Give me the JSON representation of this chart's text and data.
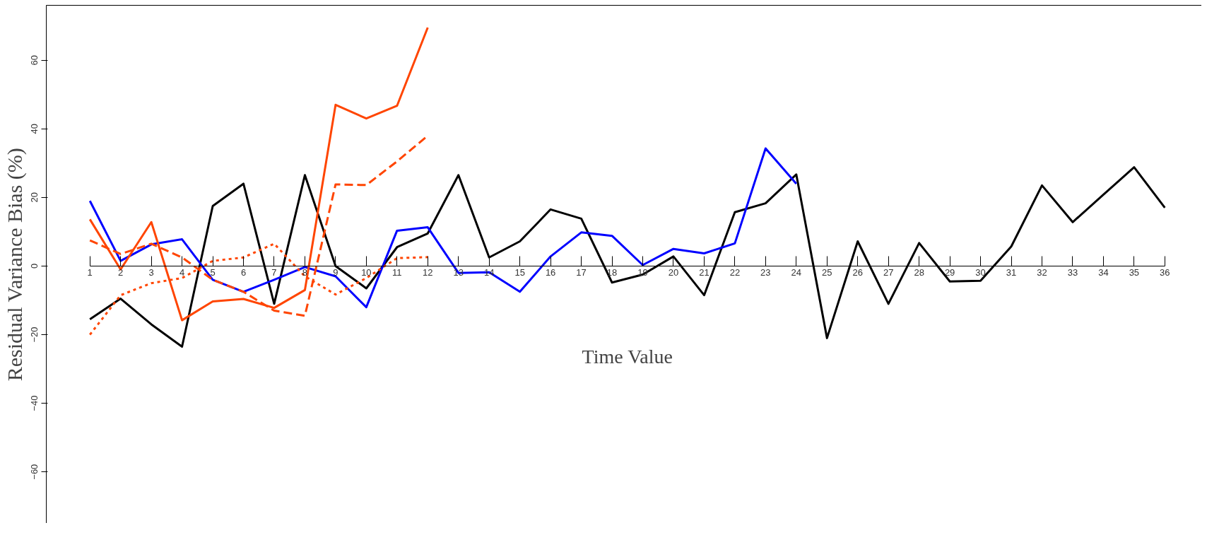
{
  "chart_data": {
    "type": "line",
    "xlabel": "Time Value",
    "ylabel": "Residual Variance Bias (%)",
    "x": [
      1,
      2,
      3,
      4,
      5,
      6,
      7,
      8,
      9,
      10,
      11,
      12,
      13,
      14,
      15,
      16,
      17,
      18,
      19,
      20,
      21,
      22,
      23,
      24,
      25,
      26,
      27,
      28,
      29,
      30,
      31,
      32,
      33,
      34,
      35,
      36
    ],
    "xlim": [
      -0.42,
      37.2
    ],
    "xticks": [
      1,
      2,
      3,
      4,
      5,
      6,
      7,
      8,
      9,
      10,
      11,
      12,
      13,
      14,
      15,
      16,
      17,
      18,
      19,
      20,
      21,
      22,
      23,
      24,
      25,
      26,
      27,
      28,
      29,
      30,
      31,
      32,
      33,
      34,
      35,
      36
    ],
    "ylim": [
      -75,
      76
    ],
    "yticks": [
      -60,
      -40,
      -20,
      0,
      20,
      40,
      60
    ],
    "grid": false,
    "marker": "none",
    "series": [
      {
        "color": "#000000",
        "line_style": "solid",
        "values": [
          -15.5,
          -9.5,
          -17,
          -23.5,
          17.5,
          24,
          -11,
          26.5,
          0,
          -6.5,
          5.5,
          9.5,
          26.5,
          2.5,
          7.2,
          16.5,
          13.8,
          -4.8,
          -2.5,
          2.8,
          -8.5,
          15.7,
          18.3,
          26.7,
          -21,
          7.2,
          -11,
          6.7,
          -4.5,
          -4.3,
          5.7,
          23.5,
          12.8,
          20.8,
          28.8,
          17
        ]
      },
      {
        "color": "#0000ff",
        "line_style": "solid",
        "values": [
          19,
          1.5,
          6.3,
          7.8,
          -4,
          -7.5,
          -4,
          -0.3,
          -3,
          -12,
          10.3,
          11.3,
          -2,
          -1.8,
          -7.5,
          2.8,
          9.8,
          8.8,
          0.3,
          5,
          3.7,
          6.6,
          34.3,
          24,
          null,
          null,
          null,
          null,
          null,
          null,
          null,
          null,
          null,
          null,
          null,
          null
        ]
      },
      {
        "color": "#ff4500",
        "line_style": "solid",
        "values": [
          13.6,
          -1,
          12.8,
          -15.8,
          -10.3,
          -9.6,
          -12.2,
          -7,
          47,
          43,
          46.7,
          69.5,
          null,
          null,
          null,
          null,
          null,
          null,
          null,
          null,
          null,
          null,
          null,
          null,
          null,
          null,
          null,
          null,
          null,
          null,
          null,
          null,
          null,
          null,
          null,
          null
        ]
      },
      {
        "color": "#ff4500",
        "line_style": "dashed",
        "values": [
          7.5,
          3.5,
          6.5,
          2.5,
          -4,
          -7.5,
          -13,
          -14.5,
          23.8,
          23.6,
          30.5,
          38,
          null,
          null,
          null,
          null,
          null,
          null,
          null,
          null,
          null,
          null,
          null,
          null,
          null,
          null,
          null,
          null,
          null,
          null,
          null,
          null,
          null,
          null,
          null,
          null
        ]
      },
      {
        "color": "#ff4500",
        "line_style": "dotted",
        "values": [
          -20,
          -8.5,
          -5,
          -3.5,
          1.5,
          2.5,
          6.5,
          -3,
          -8.3,
          -3.5,
          2.3,
          2.6,
          null,
          null,
          null,
          null,
          null,
          null,
          null,
          null,
          null,
          null,
          null,
          null,
          null,
          null,
          null,
          null,
          null,
          null,
          null,
          null,
          null,
          null,
          null,
          null
        ]
      }
    ]
  }
}
